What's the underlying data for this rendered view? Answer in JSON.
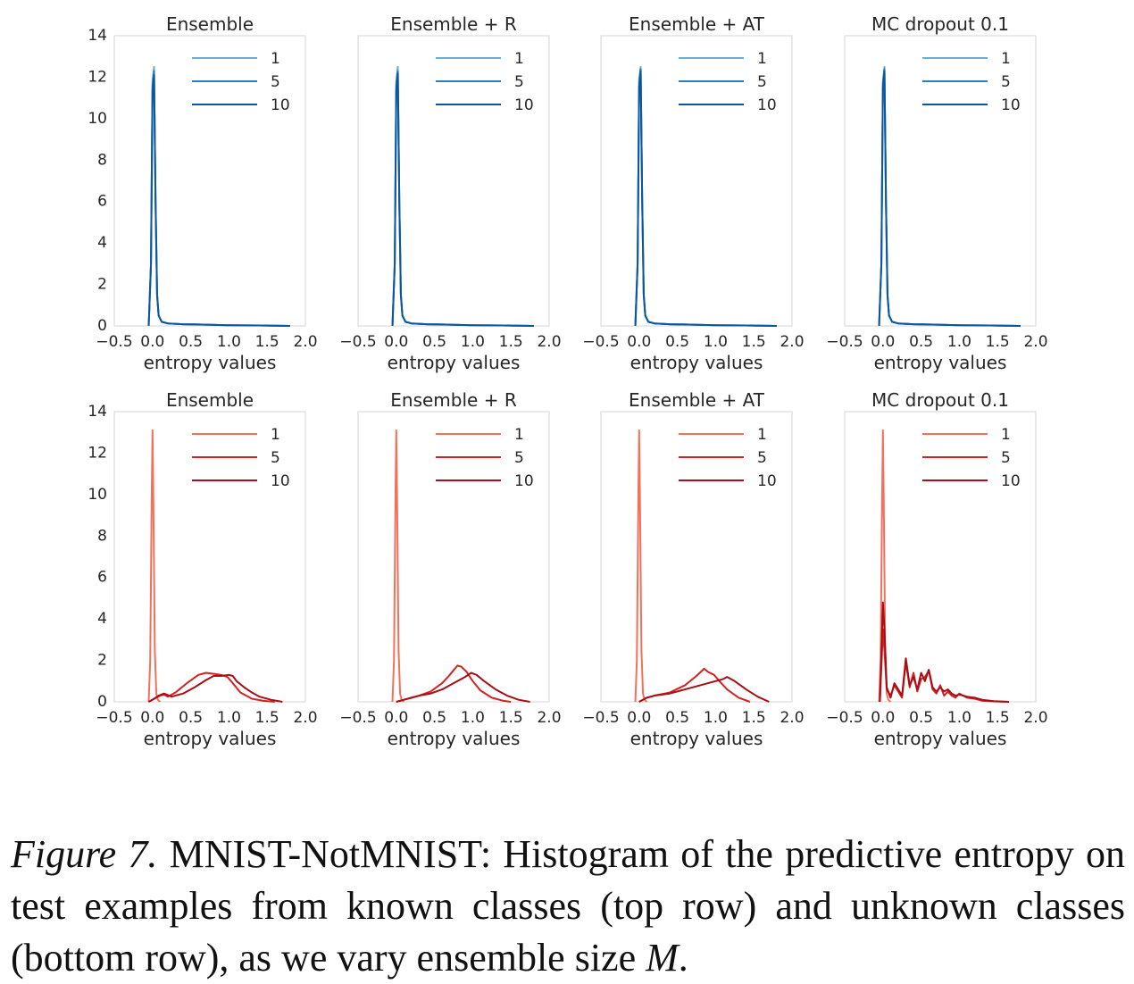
{
  "caption": {
    "label": "Figure 7.",
    "text": "MNIST-NotMNIST: Histogram of the predictive entropy on test examples from known classes (top row) and unknown classes (bottom row), as we vary ensemble size",
    "symbol": "M",
    "end": "."
  },
  "colors": {
    "blue": [
      "#6aaed6",
      "#2e7ebc",
      "#0c56a0"
    ],
    "red": [
      "#f4705a",
      "#d52221",
      "#a50f15"
    ],
    "grid": "#d6d6d6",
    "text": "#262626"
  },
  "axes": {
    "xlim": [
      -0.5,
      2.0
    ],
    "ylim": [
      0,
      14
    ],
    "xticks": [
      -0.5,
      0.0,
      0.5,
      1.0,
      1.5,
      2.0
    ],
    "xtick_labels": [
      "−0.5",
      "0.0",
      "0.5",
      "1.0",
      "1.5",
      "2.0"
    ],
    "yticks": [
      0,
      2,
      4,
      6,
      8,
      10,
      12,
      14
    ],
    "xlabel": "entropy values"
  },
  "chart_data": [
    {
      "type": "line",
      "title": "Ensemble",
      "row": "known",
      "legend": "top-right",
      "palette": "blue",
      "xlabel": "entropy values",
      "xlim": [
        -0.5,
        2.0
      ],
      "ylim": [
        0,
        14
      ],
      "series": [
        {
          "name": "1",
          "x": [
            -0.05,
            -0.02,
            0.0,
            0.02,
            0.04,
            0.06,
            0.08,
            0.12,
            0.2,
            0.4,
            0.6,
            1.0,
            1.4,
            1.8
          ],
          "y": [
            0,
            3,
            11.8,
            12.5,
            6,
            1.5,
            0.5,
            0.2,
            0.12,
            0.08,
            0.07,
            0.03,
            0.02,
            0
          ]
        },
        {
          "name": "5",
          "x": [
            -0.05,
            -0.02,
            0.0,
            0.02,
            0.04,
            0.06,
            0.08,
            0.12,
            0.2,
            0.4,
            0.6,
            1.0,
            1.4,
            1.8
          ],
          "y": [
            0,
            3,
            11.6,
            12.3,
            6,
            1.5,
            0.5,
            0.2,
            0.12,
            0.08,
            0.07,
            0.03,
            0.02,
            0
          ]
        },
        {
          "name": "10",
          "x": [
            -0.05,
            -0.02,
            0.0,
            0.02,
            0.04,
            0.06,
            0.08,
            0.12,
            0.2,
            0.4,
            0.6,
            1.0,
            1.4,
            1.8
          ],
          "y": [
            0,
            3,
            11.3,
            12.1,
            6,
            1.5,
            0.5,
            0.2,
            0.12,
            0.08,
            0.07,
            0.03,
            0.02,
            0
          ]
        }
      ]
    },
    {
      "type": "line",
      "title": "Ensemble + R",
      "row": "known",
      "legend": "top-right",
      "palette": "blue",
      "xlabel": "entropy values",
      "xlim": [
        -0.5,
        2.0
      ],
      "ylim": [
        0,
        14
      ],
      "series": [
        {
          "name": "1",
          "x": [
            -0.05,
            -0.02,
            0.0,
            0.02,
            0.04,
            0.06,
            0.08,
            0.12,
            0.2,
            0.4,
            0.6,
            1.0,
            1.4,
            1.8
          ],
          "y": [
            0,
            3,
            11.8,
            12.5,
            6,
            1.5,
            0.5,
            0.2,
            0.12,
            0.08,
            0.07,
            0.03,
            0.02,
            0
          ]
        },
        {
          "name": "5",
          "x": [
            -0.05,
            -0.02,
            0.0,
            0.02,
            0.04,
            0.06,
            0.08,
            0.12,
            0.2,
            0.4,
            0.6,
            1.0,
            1.4,
            1.8
          ],
          "y": [
            0,
            3,
            11.6,
            12.3,
            6,
            1.5,
            0.5,
            0.2,
            0.12,
            0.08,
            0.07,
            0.03,
            0.02,
            0
          ]
        },
        {
          "name": "10",
          "x": [
            -0.05,
            -0.02,
            0.0,
            0.02,
            0.04,
            0.06,
            0.08,
            0.12,
            0.2,
            0.4,
            0.6,
            1.0,
            1.4,
            1.8
          ],
          "y": [
            0,
            3,
            11.4,
            12.2,
            6,
            1.5,
            0.5,
            0.2,
            0.12,
            0.08,
            0.07,
            0.03,
            0.02,
            0
          ]
        }
      ]
    },
    {
      "type": "line",
      "title": "Ensemble + AT",
      "row": "known",
      "legend": "top-right",
      "palette": "blue",
      "xlabel": "entropy values",
      "xlim": [
        -0.5,
        2.0
      ],
      "ylim": [
        0,
        14
      ],
      "series": [
        {
          "name": "1",
          "x": [
            -0.05,
            -0.02,
            0.0,
            0.02,
            0.04,
            0.06,
            0.08,
            0.12,
            0.2,
            0.4,
            0.6,
            1.0,
            1.4,
            1.8
          ],
          "y": [
            0,
            3,
            11.9,
            12.5,
            6,
            1.5,
            0.5,
            0.2,
            0.12,
            0.08,
            0.07,
            0.03,
            0.02,
            0
          ]
        },
        {
          "name": "5",
          "x": [
            -0.05,
            -0.02,
            0.0,
            0.02,
            0.04,
            0.06,
            0.08,
            0.12,
            0.2,
            0.4,
            0.6,
            1.0,
            1.4,
            1.8
          ],
          "y": [
            0,
            3,
            11.7,
            12.4,
            6,
            1.5,
            0.5,
            0.2,
            0.12,
            0.08,
            0.07,
            0.03,
            0.02,
            0
          ]
        },
        {
          "name": "10",
          "x": [
            -0.05,
            -0.02,
            0.0,
            0.02,
            0.04,
            0.06,
            0.08,
            0.12,
            0.2,
            0.4,
            0.6,
            1.0,
            1.4,
            1.8
          ],
          "y": [
            0,
            3,
            11.5,
            12.3,
            6,
            1.5,
            0.5,
            0.2,
            0.12,
            0.08,
            0.07,
            0.03,
            0.02,
            0
          ]
        }
      ]
    },
    {
      "type": "line",
      "title": "MC dropout 0.1",
      "row": "known",
      "legend": "top-right",
      "palette": "blue",
      "xlabel": "entropy values",
      "xlim": [
        -0.5,
        2.0
      ],
      "ylim": [
        0,
        14
      ],
      "series": [
        {
          "name": "1",
          "x": [
            -0.05,
            -0.02,
            0.0,
            0.02,
            0.04,
            0.06,
            0.08,
            0.12,
            0.2,
            0.4,
            0.6,
            1.0,
            1.4,
            1.8
          ],
          "y": [
            0,
            3,
            11.8,
            12.5,
            6,
            1.5,
            0.5,
            0.2,
            0.12,
            0.08,
            0.07,
            0.03,
            0.02,
            0
          ]
        },
        {
          "name": "5",
          "x": [
            -0.05,
            -0.02,
            0.0,
            0.02,
            0.04,
            0.06,
            0.08,
            0.12,
            0.2,
            0.4,
            0.6,
            1.0,
            1.4,
            1.8
          ],
          "y": [
            0,
            3,
            11.7,
            12.4,
            6,
            1.5,
            0.5,
            0.2,
            0.12,
            0.08,
            0.07,
            0.03,
            0.02,
            0
          ]
        },
        {
          "name": "10",
          "x": [
            -0.05,
            -0.02,
            0.0,
            0.02,
            0.04,
            0.06,
            0.08,
            0.12,
            0.2,
            0.4,
            0.6,
            1.0,
            1.4,
            1.8
          ],
          "y": [
            0,
            3,
            11.5,
            12.3,
            6,
            1.5,
            0.5,
            0.2,
            0.12,
            0.08,
            0.07,
            0.03,
            0.02,
            0
          ]
        }
      ]
    },
    {
      "type": "line",
      "title": "Ensemble",
      "row": "unknown",
      "legend": "top-right",
      "palette": "red",
      "xlabel": "entropy values",
      "xlim": [
        -0.5,
        2.0
      ],
      "ylim": [
        0,
        14
      ],
      "series": [
        {
          "name": "1",
          "x": [
            -0.05,
            -0.03,
            -0.01,
            0.0,
            0.01,
            0.03,
            0.05,
            0.07,
            0.1
          ],
          "y": [
            0,
            2,
            10,
            13.1,
            10,
            2.5,
            0.4,
            0.1,
            0
          ]
        },
        {
          "name": "5",
          "x": [
            -0.05,
            0.0,
            0.1,
            0.15,
            0.2,
            0.3,
            0.45,
            0.6,
            0.7,
            0.8,
            0.9,
            0.98,
            1.05,
            1.15,
            1.3,
            1.45,
            1.6
          ],
          "y": [
            0,
            0.1,
            0.3,
            0.35,
            0.25,
            0.45,
            0.9,
            1.3,
            1.4,
            1.35,
            1.3,
            1.2,
            0.9,
            0.45,
            0.15,
            0.05,
            0
          ]
        },
        {
          "name": "10",
          "x": [
            -0.05,
            0.0,
            0.08,
            0.15,
            0.25,
            0.4,
            0.55,
            0.7,
            0.8,
            0.9,
            1.0,
            1.05,
            1.1,
            1.2,
            1.3,
            1.4,
            1.55,
            1.7
          ],
          "y": [
            0,
            0.1,
            0.3,
            0.4,
            0.25,
            0.4,
            0.7,
            1.05,
            1.25,
            1.25,
            1.3,
            1.25,
            1.0,
            0.7,
            0.45,
            0.25,
            0.1,
            0
          ]
        }
      ]
    },
    {
      "type": "line",
      "title": "Ensemble + R",
      "row": "unknown",
      "legend": "top-right",
      "palette": "red",
      "xlabel": "entropy values",
      "xlim": [
        -0.5,
        2.0
      ],
      "ylim": [
        0,
        14
      ],
      "series": [
        {
          "name": "1",
          "x": [
            -0.05,
            -0.03,
            -0.01,
            0.0,
            0.01,
            0.03,
            0.05,
            0.07,
            0.1
          ],
          "y": [
            0,
            2,
            10,
            13.1,
            10,
            2.5,
            0.4,
            0.1,
            0
          ]
        },
        {
          "name": "5",
          "x": [
            0.0,
            0.1,
            0.2,
            0.3,
            0.45,
            0.6,
            0.7,
            0.8,
            0.85,
            0.92,
            1.0,
            1.1,
            1.25,
            1.4,
            1.5
          ],
          "y": [
            0,
            0.1,
            0.2,
            0.3,
            0.5,
            0.9,
            1.3,
            1.75,
            1.7,
            1.45,
            1.0,
            0.55,
            0.2,
            0.05,
            0
          ]
        },
        {
          "name": "10",
          "x": [
            0.0,
            0.1,
            0.2,
            0.3,
            0.45,
            0.6,
            0.75,
            0.9,
            0.98,
            1.05,
            1.15,
            1.3,
            1.45,
            1.6,
            1.75
          ],
          "y": [
            0,
            0.1,
            0.2,
            0.3,
            0.4,
            0.6,
            0.9,
            1.2,
            1.4,
            1.3,
            1.0,
            0.6,
            0.3,
            0.1,
            0
          ]
        }
      ]
    },
    {
      "type": "line",
      "title": "Ensemble + AT",
      "row": "unknown",
      "legend": "top-right",
      "palette": "red",
      "xlabel": "entropy values",
      "xlim": [
        -0.5,
        2.0
      ],
      "ylim": [
        0,
        14
      ],
      "series": [
        {
          "name": "1",
          "x": [
            -0.05,
            -0.03,
            -0.01,
            0.0,
            0.01,
            0.03,
            0.05,
            0.07,
            0.1
          ],
          "y": [
            0,
            2,
            10,
            13.1,
            10,
            2.5,
            0.4,
            0.1,
            0
          ]
        },
        {
          "name": "5",
          "x": [
            0.0,
            0.1,
            0.2,
            0.4,
            0.6,
            0.75,
            0.85,
            0.9,
            0.98,
            1.05,
            1.15,
            1.3,
            1.45
          ],
          "y": [
            0,
            0.2,
            0.3,
            0.45,
            0.8,
            1.25,
            1.6,
            1.45,
            1.3,
            1.0,
            0.6,
            0.2,
            0
          ]
        },
        {
          "name": "10",
          "x": [
            0.0,
            0.1,
            0.2,
            0.4,
            0.6,
            0.8,
            1.0,
            1.1,
            1.15,
            1.25,
            1.4,
            1.55,
            1.7
          ],
          "y": [
            0,
            0.2,
            0.3,
            0.4,
            0.6,
            0.8,
            1.0,
            1.1,
            1.2,
            1.0,
            0.6,
            0.25,
            0
          ]
        }
      ]
    },
    {
      "type": "line",
      "title": "MC dropout 0.1",
      "row": "unknown",
      "legend": "top-right",
      "palette": "red",
      "xlabel": "entropy values",
      "xlim": [
        -0.5,
        2.0
      ],
      "ylim": [
        0,
        14
      ],
      "series": [
        {
          "name": "1",
          "x": [
            -0.05,
            -0.03,
            -0.01,
            0.0,
            0.01,
            0.03,
            0.05,
            0.07,
            0.1
          ],
          "y": [
            0,
            2,
            10,
            13.1,
            10,
            2.5,
            0.4,
            0.1,
            0
          ]
        },
        {
          "name": "5",
          "x": [
            -0.04,
            -0.01,
            0.0,
            0.02,
            0.05,
            0.1,
            0.15,
            0.2,
            0.25,
            0.3,
            0.35,
            0.4,
            0.45,
            0.5,
            0.55,
            0.6,
            0.65,
            0.7,
            0.75,
            0.8,
            0.85,
            0.9,
            0.95,
            1.0,
            1.1,
            1.2,
            1.3,
            1.45,
            1.65
          ],
          "y": [
            0,
            2.5,
            3.5,
            2.5,
            0.6,
            0.3,
            0.8,
            0.5,
            0.2,
            1.9,
            0.7,
            1.4,
            0.5,
            1.1,
            1.2,
            1.5,
            0.6,
            0.4,
            0.8,
            0.3,
            0.5,
            0.3,
            0.2,
            0.4,
            0.2,
            0.15,
            0.05,
            0.02,
            0
          ]
        },
        {
          "name": "10",
          "x": [
            -0.04,
            -0.01,
            0.0,
            0.02,
            0.05,
            0.1,
            0.15,
            0.2,
            0.25,
            0.3,
            0.35,
            0.4,
            0.45,
            0.5,
            0.55,
            0.6,
            0.65,
            0.7,
            0.75,
            0.8,
            0.85,
            0.9,
            0.95,
            1.0,
            1.1,
            1.2,
            1.3,
            1.45,
            1.65
          ],
          "y": [
            0,
            3.5,
            4.8,
            3.5,
            0.7,
            0.2,
            0.9,
            0.6,
            0.3,
            2.1,
            0.8,
            1.2,
            0.6,
            1.4,
            1.0,
            1.55,
            0.7,
            0.5,
            0.7,
            0.5,
            0.6,
            0.4,
            0.3,
            0.35,
            0.25,
            0.2,
            0.1,
            0.03,
            0
          ]
        }
      ]
    }
  ]
}
